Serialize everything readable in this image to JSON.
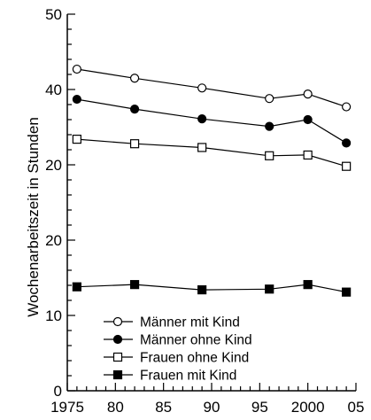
{
  "chart_data": {
    "type": "line",
    "title": "",
    "xlabel": "",
    "ylabel": "Wochenarbeitszeit in Stunden",
    "xlim": [
      1975,
      2005
    ],
    "ylim": [
      0,
      50
    ],
    "x_ticks": [
      "1975",
      "80",
      "85",
      "90",
      "95",
      "2000",
      "05"
    ],
    "y_ticks": [
      "0",
      "10",
      "20",
      "20",
      "40",
      "50"
    ],
    "grid": false,
    "legend_position": "bottom-center",
    "series": [
      {
        "name": "Männer mit Kind",
        "marker": "circle-open",
        "x": [
          1976,
          1982,
          1989,
          1996,
          2000,
          2004
        ],
        "y": [
          42.7,
          41.5,
          40.2,
          38.8,
          39.4,
          37.7
        ]
      },
      {
        "name": "Männer ohne Kind",
        "marker": "circle-filled",
        "x": [
          1976,
          1982,
          1989,
          1996,
          2000,
          2004
        ],
        "y": [
          38.7,
          37.4,
          36.1,
          35.1,
          36.0,
          32.9
        ]
      },
      {
        "name": "Frauen ohne Kind",
        "marker": "square-open",
        "x": [
          1976,
          1982,
          1989,
          1996,
          2000,
          2004
        ],
        "y": [
          33.4,
          32.8,
          32.3,
          31.2,
          31.3,
          29.8
        ]
      },
      {
        "name": "Frauen mit Kind",
        "marker": "square-filled",
        "x": [
          1976,
          1982,
          1989,
          1996,
          2000,
          2004
        ],
        "y": [
          13.8,
          14.1,
          13.4,
          13.5,
          14.1,
          13.1
        ]
      }
    ]
  }
}
